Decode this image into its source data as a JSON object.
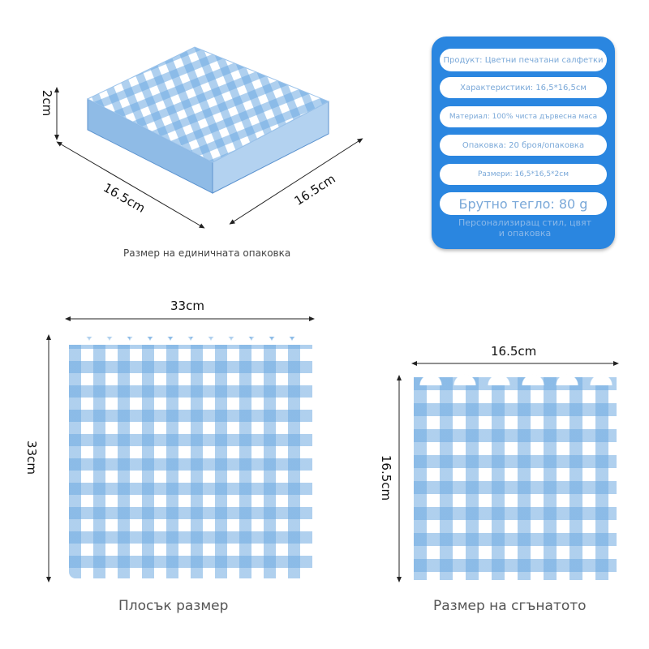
{
  "stack": {
    "height_label": "2cm",
    "width_label": "16.5cm",
    "depth_label": "16.5cm",
    "caption": "Размер на единичната опаковка"
  },
  "info_panel": {
    "items": [
      "Продукт: Цветни печатани салфетки",
      "Характеристики: 16,5*16,5см",
      "Материал: 100% чиста дървесна маса",
      "Опаковка: 20 броя/опаковка",
      "Размери: 16,5*16,5*2см",
      "Брутно тегло: 80 g"
    ],
    "footer": "Персонализиращ стил, цвят и опаковка",
    "color": "#2a86e0"
  },
  "flat": {
    "width_label": "33cm",
    "height_label": "33cm",
    "caption": "Плосък размер"
  },
  "folded": {
    "width_label": "16.5cm",
    "height_label": "16.5cm",
    "caption": "Размер на сгънатото"
  },
  "colors": {
    "gingham": "#6eaae1"
  }
}
